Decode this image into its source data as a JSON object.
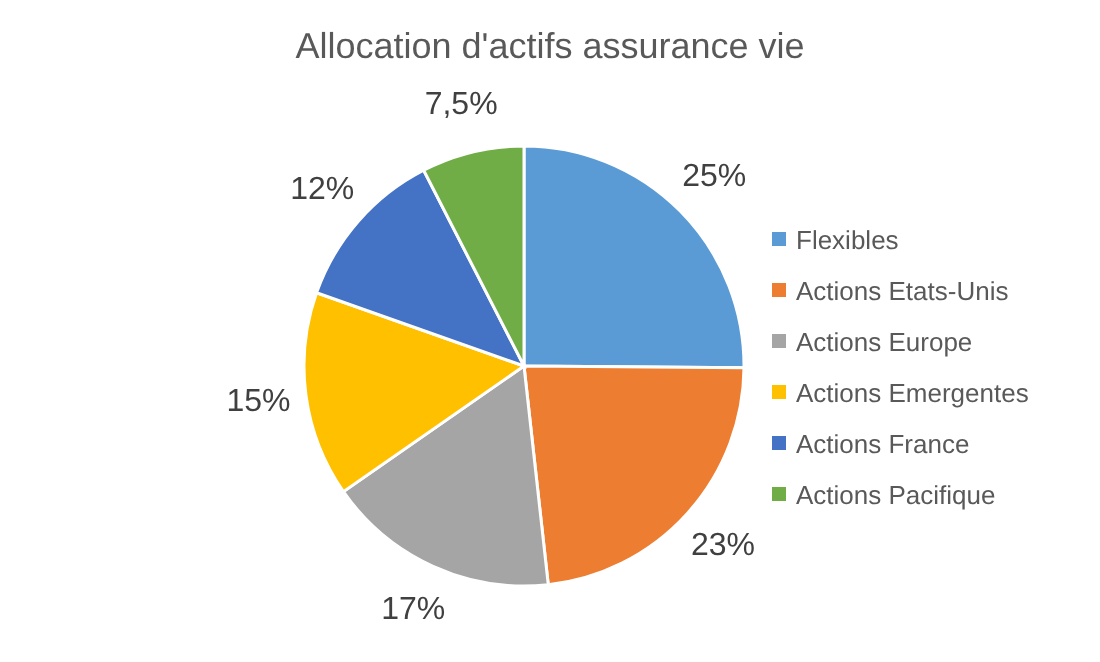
{
  "chart_data": {
    "type": "pie",
    "title": "Allocation d'actifs assurance vie",
    "categories": [
      "Flexibles",
      "Actions Etats-Unis",
      "Actions Europe",
      "Actions Emergentes",
      "Actions France",
      "Actions Pacifique"
    ],
    "values": [
      25,
      23,
      17,
      15,
      12,
      7.5
    ],
    "value_labels": [
      "25%",
      "23%",
      "17%",
      "15%",
      "12%",
      "7,5%"
    ],
    "colors": [
      "#5b9bd5",
      "#ed7d31",
      "#a5a5a5",
      "#ffc000",
      "#4472c4",
      "#70ad47"
    ],
    "legend": "right"
  }
}
